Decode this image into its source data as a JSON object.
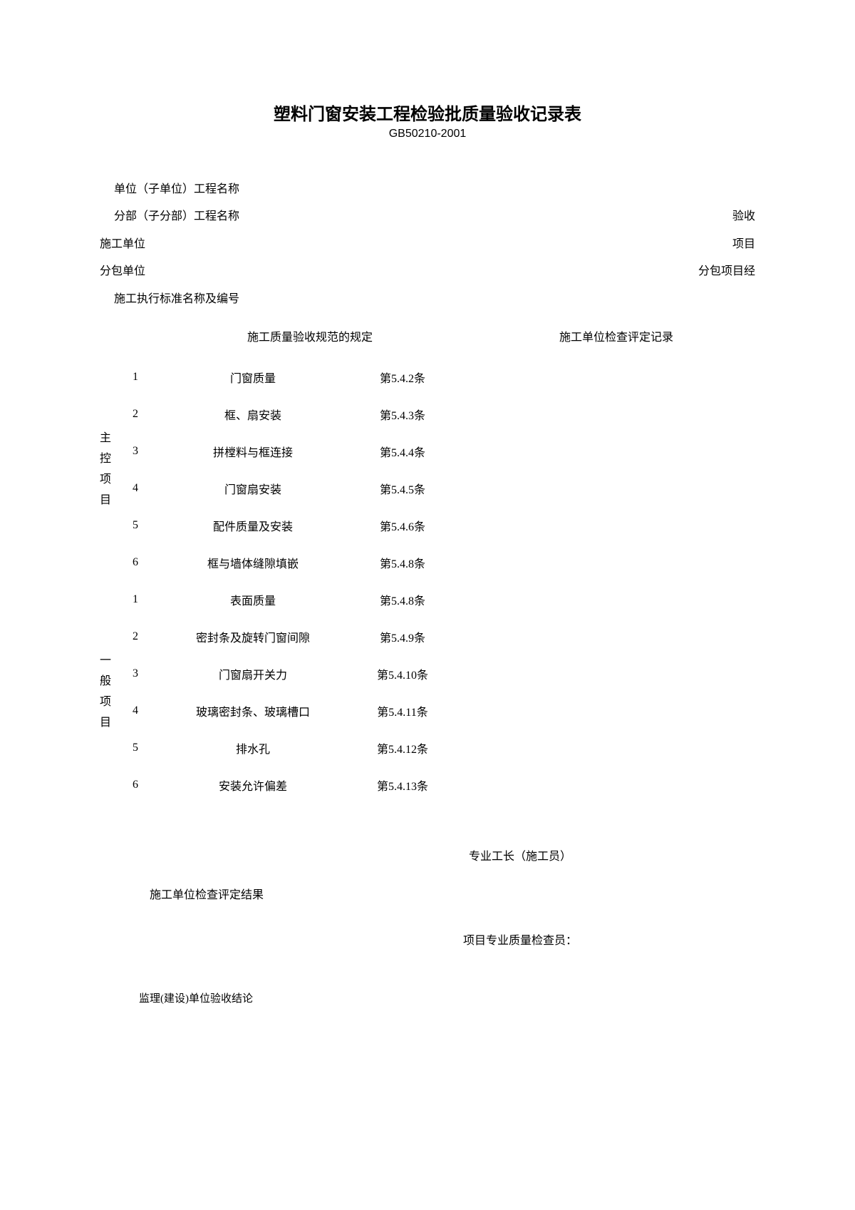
{
  "title": "塑料门窗安装工程检验批质量验收记录表",
  "code": "GB50210-2001",
  "header": {
    "unit_project_label": "单位（子单位）工程名称",
    "sub_project_label": "分部（子分部）工程名称",
    "acceptance_label": "验收",
    "construction_unit_label": "施工单位",
    "project_label": "项目",
    "subcontractor_label": "分包单位",
    "subcontract_pm_label": "分包项目经",
    "standard_label": "施工执行标准名称及编号"
  },
  "columns": {
    "spec_header": "施工质量验收规范的规定",
    "record_header": "施工单位检查评定记录"
  },
  "main_category_label": "主控项目",
  "main_items": [
    {
      "num": "1",
      "name": "门窗质量",
      "clause": "第5.4.2条"
    },
    {
      "num": "2",
      "name": "框、扇安装",
      "clause": "第5.4.3条"
    },
    {
      "num": "3",
      "name": "拼樘料与框连接",
      "clause": "第5.4.4条"
    },
    {
      "num": "4",
      "name": "门窗扇安装",
      "clause": "第5.4.5条"
    },
    {
      "num": "5",
      "name": "配件质量及安装",
      "clause": "第5.4.6条"
    },
    {
      "num": "6",
      "name": "框与墙体缝隙填嵌",
      "clause": "第5.4.8条"
    }
  ],
  "general_category_label": "一般项目",
  "general_items": [
    {
      "num": "1",
      "name": "表面质量",
      "clause": "第5.4.8条"
    },
    {
      "num": "2",
      "name": "密封条及旋转门窗间隙",
      "clause": "第5.4.9条"
    },
    {
      "num": "3",
      "name": "门窗扇开关力",
      "clause": "第5.4.10条"
    },
    {
      "num": "4",
      "name": "玻璃密封条、玻璃槽口",
      "clause": "第5.4.11条"
    },
    {
      "num": "5",
      "name": "排水孔",
      "clause": "第5.4.12条"
    },
    {
      "num": "6",
      "name": "安装允许偏差",
      "clause": "第5.4.13条"
    }
  ],
  "footer": {
    "foreman_label": "专业工长（施工员）",
    "result_label": "施工单位检查评定结果",
    "inspector_label": "项目专业质量检查员：",
    "conclusion_label": "监理(建设)单位验收结论"
  }
}
